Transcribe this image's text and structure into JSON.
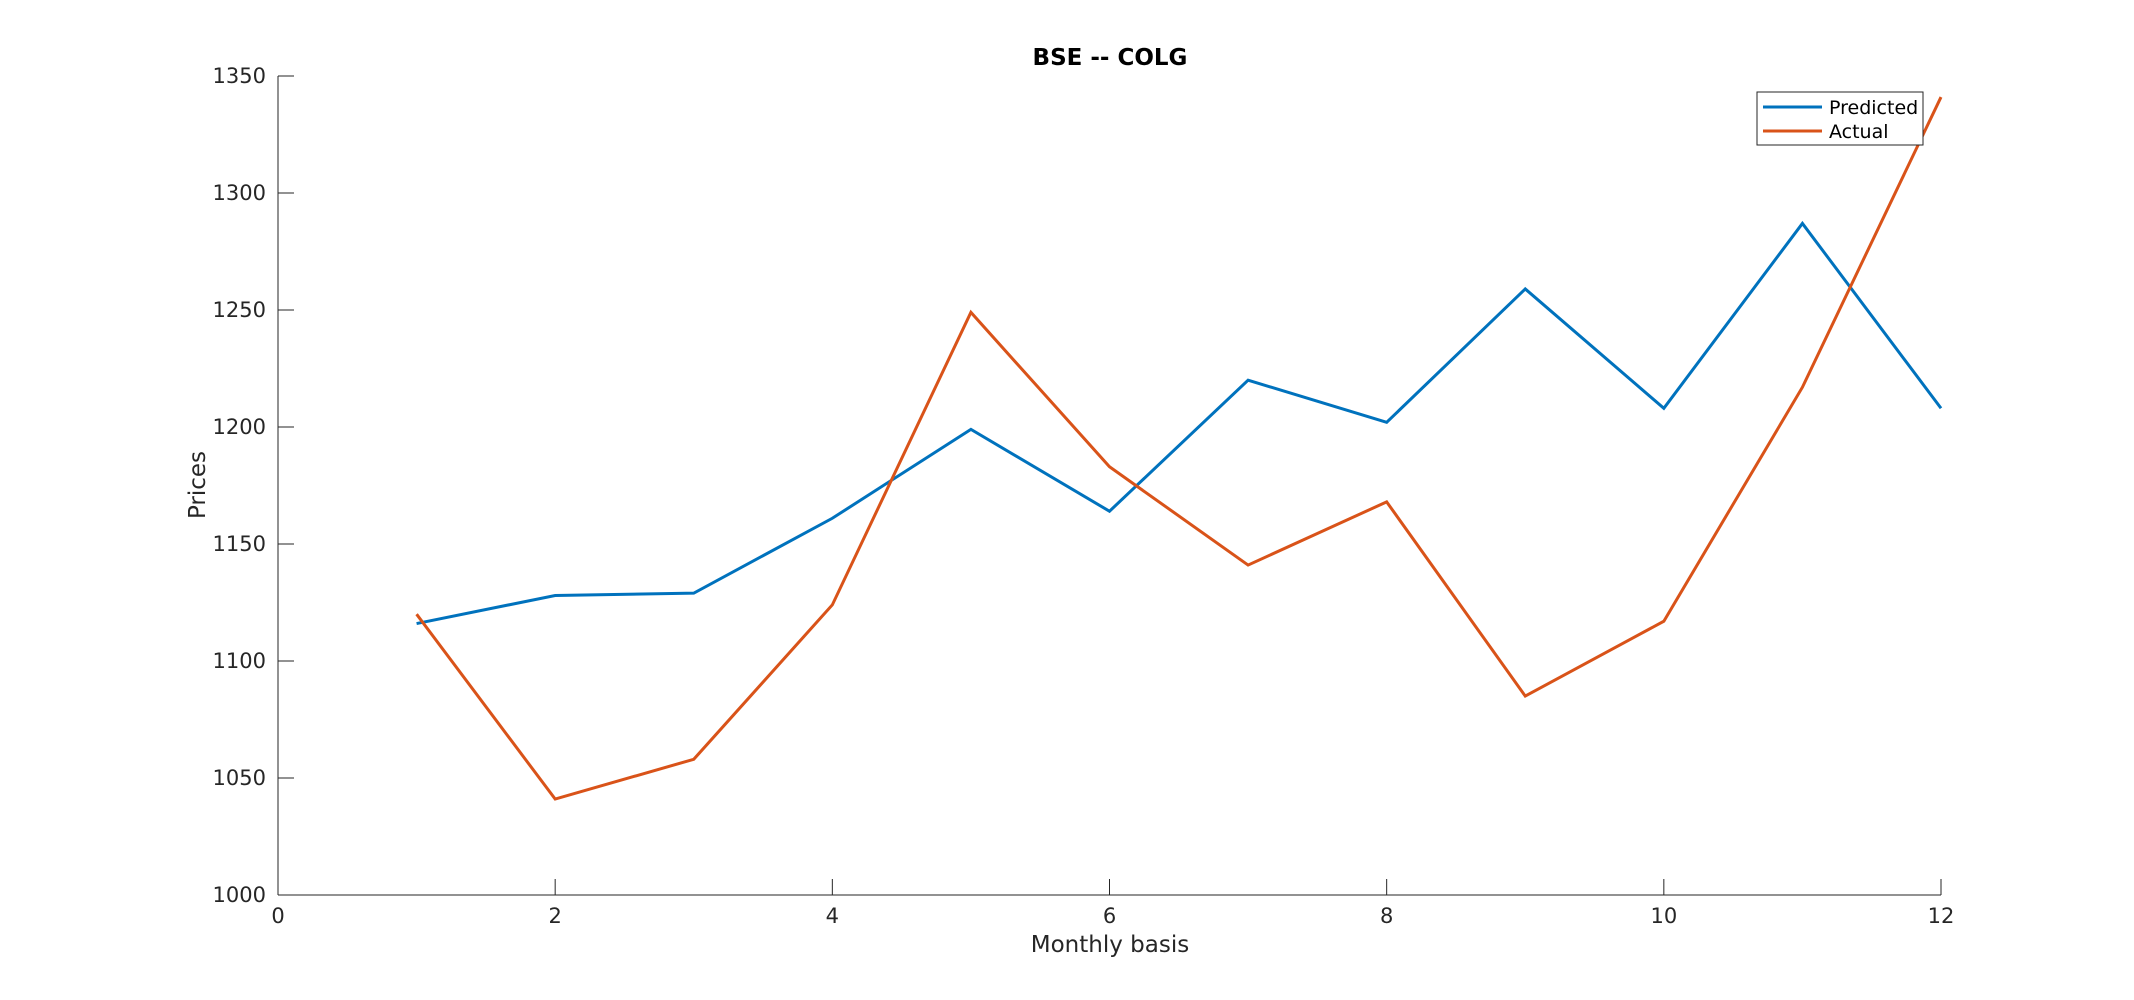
{
  "chart_data": {
    "type": "line",
    "title": "BSE -- COLG",
    "xlabel": "Monthly basis",
    "ylabel": "Prices",
    "xlim": [
      0,
      12
    ],
    "ylim": [
      1000,
      1350
    ],
    "xticks": [
      0,
      2,
      4,
      6,
      8,
      10,
      12
    ],
    "yticks": [
      1000,
      1050,
      1100,
      1150,
      1200,
      1250,
      1300,
      1350
    ],
    "grid": false,
    "legend_position": "top-right",
    "x": [
      1,
      2,
      3,
      4,
      5,
      6,
      7,
      8,
      9,
      10,
      11,
      12
    ],
    "series": [
      {
        "name": "Predicted",
        "color": "#0072bd",
        "values": [
          1116,
          1128,
          1129,
          1161,
          1199,
          1164,
          1220,
          1202,
          1259,
          1208,
          1287,
          1208
        ]
      },
      {
        "name": "Actual",
        "color": "#d95319",
        "values": [
          1120,
          1041,
          1058,
          1124,
          1249,
          1183,
          1141,
          1168,
          1085,
          1117,
          1217,
          1341
        ]
      }
    ]
  }
}
